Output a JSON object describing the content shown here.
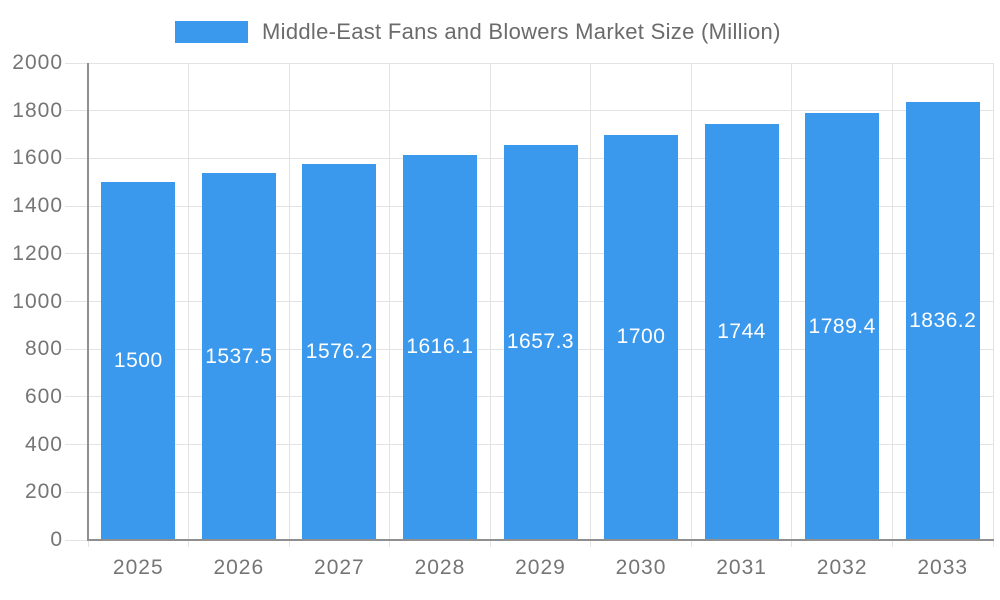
{
  "chart_data": {
    "type": "bar",
    "title": "Middle-East Fans and Blowers Market Size (Million)",
    "series_name": "Middle-East Fans and Blowers Market Size (Million)",
    "categories": [
      "2025",
      "2026",
      "2027",
      "2028",
      "2029",
      "2030",
      "2031",
      "2032",
      "2033"
    ],
    "values": [
      1500,
      1537.5,
      1576.2,
      1616.1,
      1657.3,
      1700,
      1744,
      1789.4,
      1836.2
    ],
    "value_labels": [
      "1500",
      "1537.5",
      "1576.2",
      "1616.1",
      "1657.3",
      "1700",
      "1744",
      "1789.4",
      "1836.2"
    ],
    "xlabel": "",
    "ylabel": "",
    "ylim": [
      0,
      2000
    ],
    "ytick_values": [
      0,
      200,
      400,
      600,
      800,
      1000,
      1200,
      1400,
      1600,
      1800,
      2000
    ],
    "ytick_labels": [
      "0",
      "200",
      "400",
      "600",
      "800",
      "1000",
      "1200",
      "1400",
      "1600",
      "1800",
      "2000"
    ],
    "grid": true,
    "legend_position": "top",
    "value_label_position": "inside-middle",
    "colors": {
      "bar": "#3a99ec",
      "grid": "#e3e3e3",
      "axis": "#8f8f8f",
      "tick_label": "#757575",
      "title": "#6b6b6b",
      "value_label": "#ffffff",
      "background": "#ffffff"
    }
  }
}
